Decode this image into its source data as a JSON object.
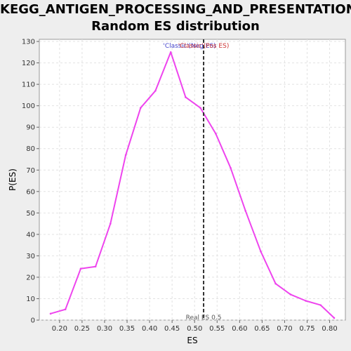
{
  "chart_data": {
    "type": "line",
    "title_line1": "KEGG_ANTIGEN_PROCESSING_AND_PRESENTATION:",
    "title_line2": "Random ES distribution",
    "xlabel": "ES",
    "ylabel": "P(ES)",
    "xlim": [
      0.155,
      0.835
    ],
    "ylim": [
      0,
      131
    ],
    "xticks": [
      0.2,
      0.25,
      0.3,
      0.35,
      0.4,
      0.45,
      0.5,
      0.55,
      0.6,
      0.65,
      0.7,
      0.75,
      0.8
    ],
    "yticks": [
      0,
      10,
      20,
      30,
      40,
      50,
      60,
      70,
      80,
      90,
      100,
      110,
      120,
      130
    ],
    "grid": true,
    "series": [
      {
        "color": "#ee44ee",
        "x": [
          0.18,
          0.213,
          0.247,
          0.28,
          0.313,
          0.347,
          0.38,
          0.413,
          0.447,
          0.48,
          0.513,
          0.547,
          0.58,
          0.613,
          0.647,
          0.68,
          0.713,
          0.747,
          0.78,
          0.81
        ],
        "y": [
          3,
          5,
          24,
          25,
          45,
          77,
          99,
          107,
          125,
          104,
          99,
          87,
          71,
          51,
          32,
          17,
          12,
          9,
          7,
          1
        ]
      }
    ],
    "real_es": {
      "value": 0.52,
      "label": "Real ES 0.5",
      "color": "#333333"
    },
    "annotations": [
      {
        "text": "'Classic'(Neg ES)",
        "color": "#4444cc"
      },
      {
        "text": "'Classic'(Pos ES)",
        "color": "#cc3333"
      }
    ]
  }
}
